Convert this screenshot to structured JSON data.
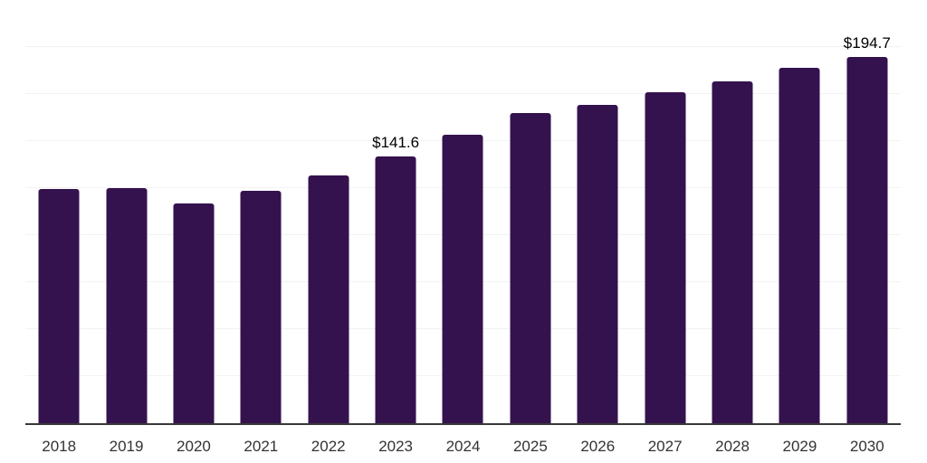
{
  "chart_data": {
    "type": "bar",
    "title": "",
    "xlabel": "",
    "ylabel": "",
    "categories": [
      "2018",
      "2019",
      "2020",
      "2021",
      "2022",
      "2023",
      "2024",
      "2025",
      "2026",
      "2027",
      "2028",
      "2029",
      "2030"
    ],
    "values": [
      124.7,
      125.1,
      117.0,
      123.7,
      131.8,
      141.6,
      153.3,
      164.8,
      169.3,
      176.2,
      181.8,
      188.8,
      194.7
    ],
    "data_labels": {
      "2023": "$141.6",
      "2030": "$194.7"
    },
    "ylim": [
      0,
      225
    ],
    "gridline_step": 25,
    "grid": true,
    "legend": false,
    "y_axis_labels_visible": false,
    "colors": {
      "bar": "#34124E",
      "gridline": "#f2f2f2",
      "axis": "#38383a",
      "tick_label": "#333333",
      "data_label": "#000000",
      "background": "#ffffff"
    }
  }
}
